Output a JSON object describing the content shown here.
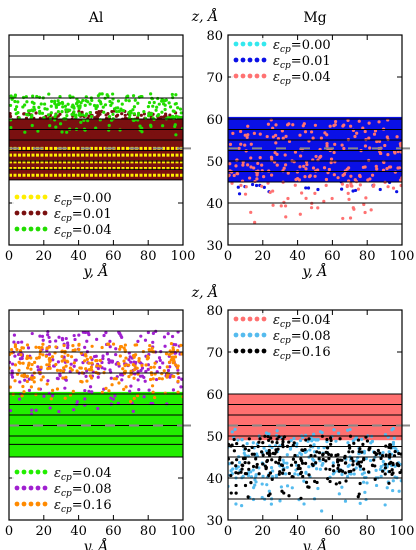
{
  "figure": {
    "shared_y_label": "z, Å"
  },
  "chart_data": [
    {
      "id": "p1",
      "type": "scatter",
      "title": "Al",
      "xlabel": "y, Å",
      "xlim": [
        0,
        100
      ],
      "ylim": [
        30,
        80
      ],
      "xticks": [
        0,
        20,
        40,
        60,
        80,
        100
      ],
      "yticks": [
        30,
        40,
        50,
        60,
        70,
        80
      ],
      "show_y_ticklabels": false,
      "hlines": [
        45.5,
        48,
        50,
        52.5,
        55,
        57.5,
        60,
        65,
        70,
        75
      ],
      "dashed_marker_z": 53,
      "legend_position": "bottom-left",
      "series": [
        {
          "name": "εcp=0.00",
          "symbol": "ε",
          "sub": "cp",
          "val": "=0.00",
          "color": "#ffee00",
          "band": [
            46,
            53.5
          ],
          "cloud": null
        },
        {
          "name": "εcp=0.01",
          "symbol": "ε",
          "sub": "cp",
          "val": "=0.01",
          "color": "#7a1010",
          "band": [
            45.5,
            60
          ],
          "cloud": [
            55,
            62
          ]
        },
        {
          "name": "εcp=0.04",
          "symbol": "ε",
          "sub": "cp",
          "val": "=0.04",
          "color": "#22dd00",
          "band": null,
          "cloud": [
            56,
            66
          ]
        }
      ]
    },
    {
      "id": "p2",
      "type": "scatter",
      "title": "Mg",
      "xlabel": "y, Å",
      "xlim": [
        0,
        100
      ],
      "ylim": [
        30,
        80
      ],
      "xticks": [
        0,
        20,
        40,
        60,
        80,
        100
      ],
      "yticks": [
        30,
        40,
        50,
        60,
        70,
        80
      ],
      "show_y_ticklabels": true,
      "hlines": [
        35,
        40,
        45,
        47.5,
        50,
        52.5,
        55,
        57.5,
        60
      ],
      "dashed_marker_z": 53,
      "legend_position": "top-left",
      "series": [
        {
          "name": "εcp=0.00",
          "symbol": "ε",
          "sub": "cp",
          "val": "=0.00",
          "color": "#33e8ee",
          "band": null,
          "cloud": null
        },
        {
          "name": "εcp=0.01",
          "symbol": "ε",
          "sub": "cp",
          "val": "=0.01",
          "color": "#0a10e6",
          "band": [
            45,
            60.5
          ],
          "cloud": [
            42,
            58
          ]
        },
        {
          "name": "εcp=0.04",
          "symbol": "ε",
          "sub": "cp",
          "val": "=0.04",
          "color": "#ff7272",
          "band": null,
          "cloud": [
            33,
            60
          ]
        }
      ]
    },
    {
      "id": "p3",
      "type": "scatter",
      "title": "",
      "xlabel": "y, Å",
      "xlim": [
        0,
        100
      ],
      "ylim": [
        30,
        80
      ],
      "xticks": [
        0,
        20,
        40,
        60,
        80,
        100
      ],
      "yticks": [
        30,
        40,
        50,
        60,
        70,
        80
      ],
      "show_y_ticklabels": false,
      "hlines": [
        45,
        48,
        50,
        52.5,
        55,
        57.5,
        60,
        65,
        70,
        75
      ],
      "dashed_marker_z": 52.5,
      "legend_position": "bottom-left",
      "series": [
        {
          "name": "εcp=0.04",
          "symbol": "ε",
          "sub": "cp",
          "val": "=0.04",
          "color": "#22ee00",
          "band": [
            45,
            60.5
          ],
          "cloud": null
        },
        {
          "name": "εcp=0.08",
          "symbol": "ε",
          "sub": "cp",
          "val": "=0.08",
          "color": "#a020d0",
          "band": null,
          "cloud": [
            55,
            75
          ]
        },
        {
          "name": "εcp=0.16",
          "symbol": "ε",
          "sub": "cp",
          "val": "=0.16",
          "color": "#ff8a00",
          "band": null,
          "cloud": [
            58,
            72
          ]
        }
      ]
    },
    {
      "id": "p4",
      "type": "scatter",
      "title": "",
      "xlabel": "y, Å",
      "xlim": [
        0,
        100
      ],
      "ylim": [
        30,
        80
      ],
      "xticks": [
        0,
        20,
        40,
        60,
        80,
        100
      ],
      "yticks": [
        30,
        40,
        50,
        60,
        70,
        80
      ],
      "show_y_ticklabels": true,
      "hlines": [
        35,
        40,
        45,
        47.5,
        50,
        52.5,
        55,
        57.5,
        60
      ],
      "dashed_marker_z": 52.5,
      "legend_position": "top-left",
      "series": [
        {
          "name": "εcp=0.04",
          "symbol": "ε",
          "sub": "cp",
          "val": "=0.04",
          "color": "#ff7070",
          "band": [
            49,
            60
          ],
          "cloud": null
        },
        {
          "name": "εcp=0.08",
          "symbol": "ε",
          "sub": "cp",
          "val": "=0.08",
          "color": "#55bbee",
          "band": null,
          "cloud": [
            32,
            52
          ]
        },
        {
          "name": "εcp=0.16",
          "symbol": "ε",
          "sub": "cp",
          "val": "=0.16",
          "color": "#000000",
          "band": null,
          "cloud": [
            35,
            50
          ]
        }
      ]
    }
  ]
}
